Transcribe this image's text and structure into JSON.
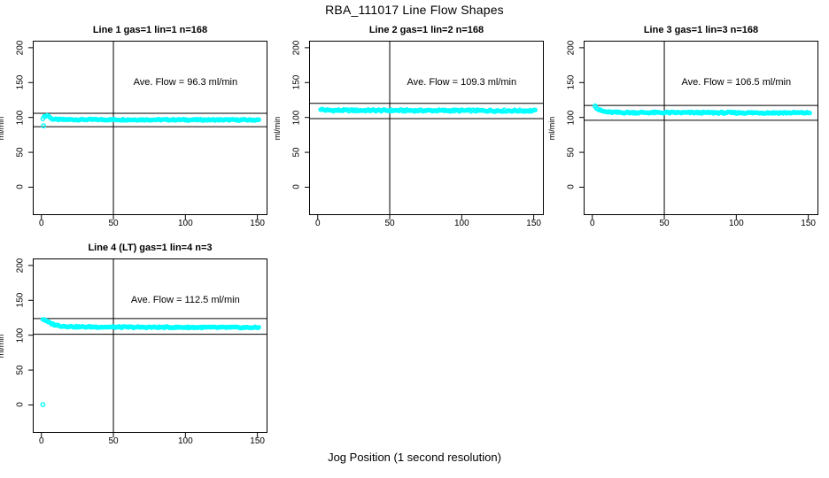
{
  "page": {
    "main_title": "RBA_111017  Line Flow Shapes",
    "colors": {
      "points": "#00FFFF",
      "lines": "#000000",
      "background": "#FFFFFF",
      "text": "#000000"
    }
  },
  "chart_data": {
    "type": "scatter",
    "title": "RBA_111017  Line Flow Shapes",
    "xlabel": "Jog Position (1 second resolution)",
    "ylabel": "ml/min",
    "xlim": [
      -6,
      157
    ],
    "ylim": [
      -40,
      210
    ],
    "x_ticks": [
      0,
      50,
      100,
      150
    ],
    "y_ticks": [
      0,
      50,
      100,
      150,
      200
    ],
    "grid": false,
    "legend": "none",
    "point_style": "open-circle",
    "point_color": "#00FFFF",
    "panels": [
      {
        "title": "Line 1 gas=1 lin=1 n=168",
        "annotation": "Ave. Flow =  96.3  ml/min",
        "annotation_pos": [
          100,
          150
        ],
        "ave_flow": 96.3,
        "n": 168,
        "vline_x": 50,
        "hlines": [
          105.9,
          86.7
        ],
        "trend": [
          [
            1,
            99
          ],
          [
            2,
            101
          ],
          [
            3,
            102.5
          ],
          [
            4,
            103
          ],
          [
            5,
            102.5
          ],
          [
            6,
            99.5
          ],
          [
            8,
            97.5
          ],
          [
            12,
            97
          ],
          [
            60,
            96.8
          ],
          [
            151,
            96.4
          ]
        ],
        "outliers": [
          [
            1.5,
            88
          ]
        ],
        "noise": 0.9
      },
      {
        "title": "Line 2 gas=1 lin=2 n=168",
        "annotation": "Ave. Flow =  109.3  ml/min",
        "annotation_pos": [
          100,
          150
        ],
        "ave_flow": 109.3,
        "n": 168,
        "vline_x": 50,
        "hlines": [
          120.2,
          98.4
        ],
        "trend": [
          [
            2,
            112
          ],
          [
            4,
            110.8
          ],
          [
            8,
            110.2
          ],
          [
            60,
            110
          ],
          [
            151,
            109.6
          ]
        ],
        "outliers": [],
        "noise": 1.3
      },
      {
        "title": "Line 3 gas=1 lin=3 n=168",
        "annotation": "Ave. Flow =  106.5  ml/min",
        "annotation_pos": [
          100,
          150
        ],
        "ave_flow": 106.5,
        "n": 168,
        "vline_x": 50,
        "hlines": [
          117.2,
          95.9
        ],
        "trend": [
          [
            2,
            116.5
          ],
          [
            3,
            113.5
          ],
          [
            5,
            110.5
          ],
          [
            8,
            108.5
          ],
          [
            12,
            107.5
          ],
          [
            20,
            107
          ],
          [
            151,
            106.6
          ]
        ],
        "outliers": [
          [
            2,
            116.5
          ]
        ],
        "noise": 1.1
      },
      {
        "title": "Line 4 (LT) gas=1 lin=4 n=3",
        "annotation": "Ave. Flow =  112.5  ml/min",
        "annotation_pos": [
          100,
          150
        ],
        "ave_flow": 112.5,
        "n": 3,
        "vline_x": 50,
        "hlines": [
          123.8,
          101.3
        ],
        "trend": [
          [
            1,
            123
          ],
          [
            2,
            122.5
          ],
          [
            4,
            119.5
          ],
          [
            6,
            117.5
          ],
          [
            9,
            115
          ],
          [
            14,
            113
          ],
          [
            25,
            112
          ],
          [
            60,
            111.5
          ],
          [
            110,
            111.2
          ],
          [
            151,
            111
          ]
        ],
        "outliers": [
          [
            1,
            0.5
          ]
        ],
        "noise": 0.9
      }
    ]
  }
}
